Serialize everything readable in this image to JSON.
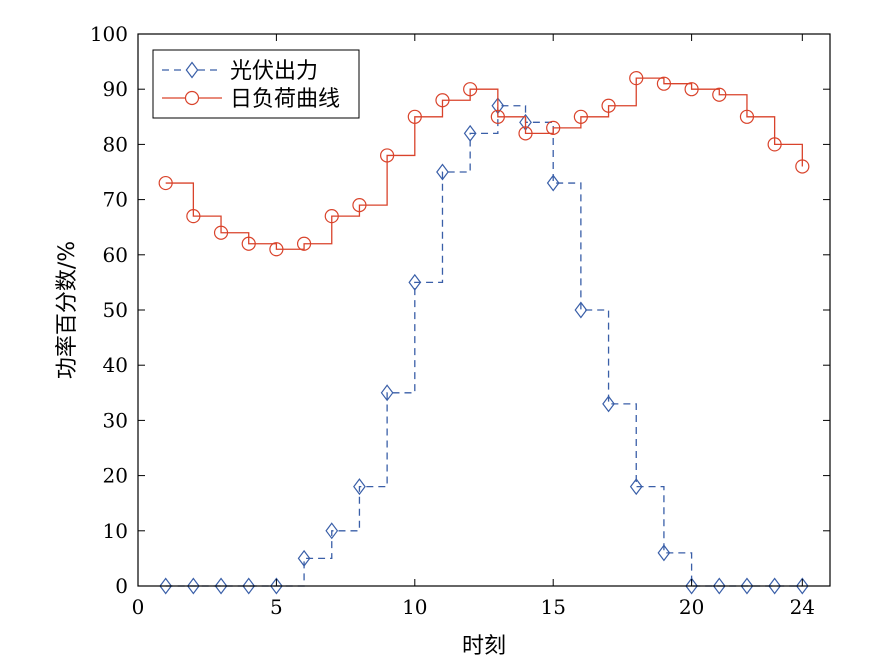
{
  "chart_data": {
    "type": "line",
    "xlabel": "时刻",
    "ylabel": "功率百分数/%",
    "xlim": [
      0,
      25
    ],
    "ylim": [
      0,
      100
    ],
    "x_ticks": [
      0,
      5,
      10,
      15,
      20,
      24
    ],
    "y_ticks": [
      0,
      10,
      20,
      30,
      40,
      50,
      60,
      70,
      80,
      90,
      100
    ],
    "grid": false,
    "legend_position": "top-left",
    "step": true,
    "series": [
      {
        "name": "光伏出力",
        "color": "#3a5fa8",
        "line_style": "dashed",
        "marker": "diamond",
        "x": [
          1,
          2,
          3,
          4,
          5,
          6,
          7,
          8,
          9,
          10,
          11,
          12,
          13,
          14,
          15,
          16,
          17,
          18,
          19,
          20,
          21,
          22,
          23,
          24
        ],
        "values": [
          0,
          0,
          0,
          0,
          0,
          5,
          10,
          18,
          35,
          55,
          75,
          82,
          87,
          84,
          73,
          50,
          33,
          18,
          6,
          0,
          0,
          0,
          0,
          0
        ]
      },
      {
        "name": "日负荷曲线",
        "color": "#d9432b",
        "line_style": "solid",
        "marker": "circle",
        "x": [
          1,
          2,
          3,
          4,
          5,
          6,
          7,
          8,
          9,
          10,
          11,
          12,
          13,
          14,
          15,
          16,
          17,
          18,
          19,
          20,
          21,
          22,
          23,
          24
        ],
        "values": [
          73,
          67,
          64,
          62,
          61,
          62,
          67,
          69,
          78,
          85,
          88,
          90,
          85,
          82,
          83,
          85,
          87,
          92,
          91,
          90,
          89,
          85,
          80,
          76
        ]
      }
    ]
  }
}
